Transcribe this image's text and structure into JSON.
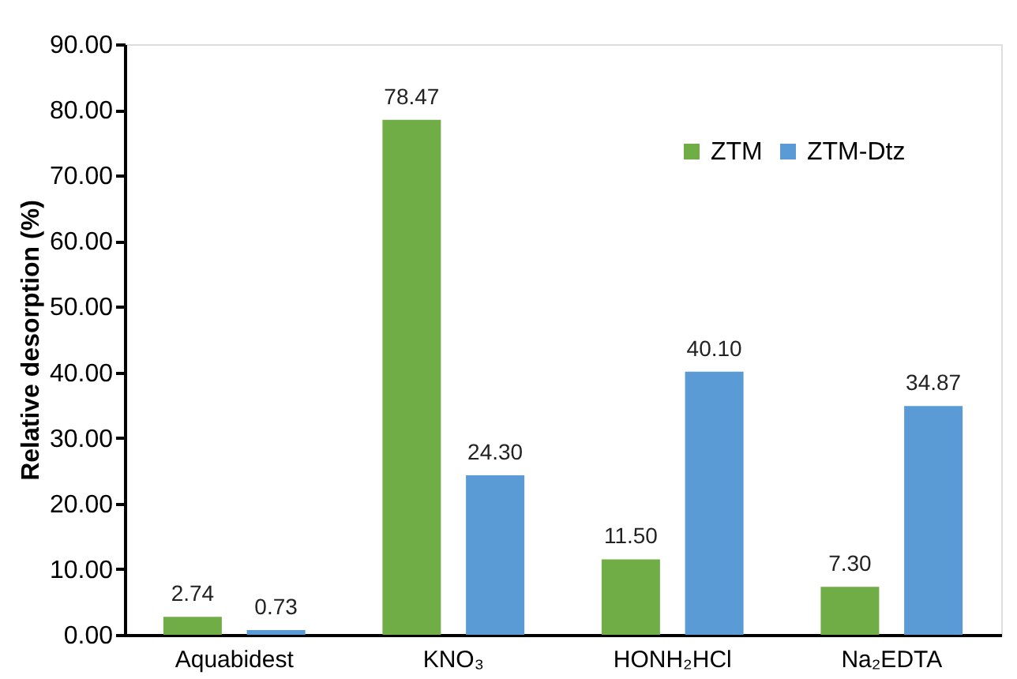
{
  "chart_data": {
    "type": "bar",
    "ylabel": "Relative desorption (%)",
    "categories": [
      "Aquabidest",
      "KNO₃",
      "HONH₂HCl",
      "Na₂EDTA"
    ],
    "series": [
      {
        "name": "ZTM",
        "color": "#70ad47",
        "values": [
          2.74,
          78.47,
          11.5,
          7.3
        ],
        "value_labels": [
          "2.74",
          "78.47",
          "11.50",
          "7.30"
        ]
      },
      {
        "name": "ZTM-Dtz",
        "color": "#5b9bd5",
        "values": [
          0.73,
          24.3,
          40.1,
          34.87
        ],
        "value_labels": [
          "0.73",
          "24.30",
          "40.10",
          "34.87"
        ]
      }
    ],
    "ylim": [
      0,
      90
    ],
    "yticks": [
      {
        "value": 0,
        "label": "0.00"
      },
      {
        "value": 10,
        "label": "10.00"
      },
      {
        "value": 20,
        "label": "20.00"
      },
      {
        "value": 30,
        "label": "30.00"
      },
      {
        "value": 40,
        "label": "40.00"
      },
      {
        "value": 50,
        "label": "50.00"
      },
      {
        "value": 60,
        "label": "60.00"
      },
      {
        "value": 70,
        "label": "70.00"
      },
      {
        "value": 80,
        "label": "80.00"
      },
      {
        "value": 90,
        "label": "90.00"
      }
    ],
    "grid": false,
    "legend": "top right"
  }
}
